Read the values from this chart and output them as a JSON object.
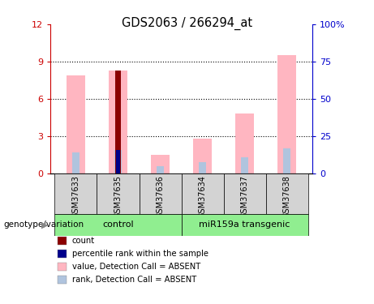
{
  "title": "GDS2063 / 266294_at",
  "samples": [
    "GSM37633",
    "GSM37635",
    "GSM37636",
    "GSM37634",
    "GSM37637",
    "GSM37638"
  ],
  "value_absent": [
    7.9,
    8.3,
    1.5,
    2.8,
    4.8,
    9.5
  ],
  "rank_absent": [
    1.7,
    1.9,
    0.55,
    0.9,
    1.3,
    2.0
  ],
  "count_bar": [
    0,
    8.3,
    0,
    0,
    0,
    0
  ],
  "percentile_bar": [
    0,
    1.9,
    0,
    0,
    0,
    0
  ],
  "count_color": "#8B0000",
  "percentile_color": "#00008B",
  "value_absent_color": "#FFB6C1",
  "rank_absent_color": "#B0C4DE",
  "ylim_left": [
    0,
    12
  ],
  "ylim_right": [
    0,
    100
  ],
  "yticks_left": [
    0,
    3,
    6,
    9,
    12
  ],
  "yticks_right": [
    0,
    25,
    50,
    75,
    100
  ],
  "group_label": "genotype/variation",
  "control_label": "control",
  "transgenic_label": "miR159a transgenic",
  "legend_items": [
    {
      "label": "count",
      "color": "#8B0000"
    },
    {
      "label": "percentile rank within the sample",
      "color": "#00008B"
    },
    {
      "label": "value, Detection Call = ABSENT",
      "color": "#FFB6C1"
    },
    {
      "label": "rank, Detection Call = ABSENT",
      "color": "#B0C4DE"
    }
  ],
  "bg_color": "#FFFFFF",
  "label_box_color": "#D3D3D3",
  "group_box_color": "#90EE90",
  "left_axis_color": "#CC0000",
  "right_axis_color": "#0000CC"
}
